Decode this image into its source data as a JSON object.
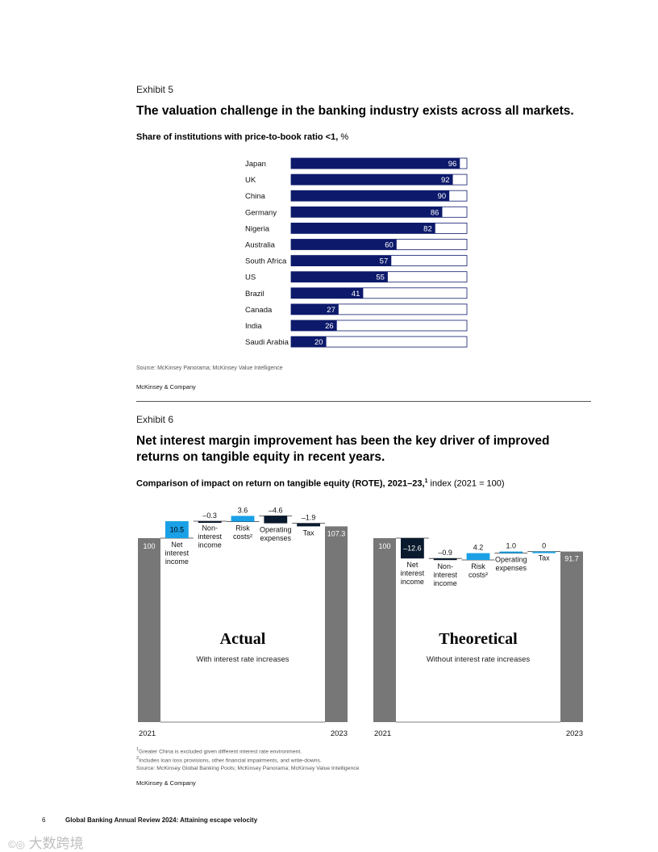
{
  "exhibit5": {
    "label": "Exhibit 5",
    "title": "The valuation challenge in the banking industry exists across all markets.",
    "subtitle_bold": "Share of institutions with price-to-book ratio <1,",
    "subtitle_unit": " %",
    "source": "Source: McKinsey Panorama; McKinsey Value Intelligence",
    "brand": "McKinsey & Company"
  },
  "exhibit6": {
    "label": "Exhibit 6",
    "title_line1": "Net interest margin improvement has been the key driver of improved",
    "title_line2": "returns on tangible equity in recent years.",
    "subtitle_bold": "Comparison of impact on return on tangible equity (ROTE), 2021–23,",
    "subtitle_sup": "1",
    "subtitle_rest": " index (2021 = 100)",
    "footnote1": "Greater China is excluded given different interest rate environment.",
    "footnote2": "Includes loan loss provisions, other financial impairments, and write-downs.",
    "source": "Source: McKinsey Global Banking Pools; McKinsey Panorama; McKinsey Value Intelligence",
    "brand": "McKinsey & Company"
  },
  "footer": {
    "page_number": "6",
    "publication": "Global Banking Annual Review 2024: Attaining escape velocity"
  },
  "watermark": "大数跨境",
  "colors": {
    "navy": "#0d1a6b",
    "dark": "#091a2e",
    "cyan": "#1aa0e6",
    "gray": "#777777"
  },
  "chart_data": [
    {
      "type": "bar",
      "orientation": "horizontal",
      "categories": [
        "Japan",
        "UK",
        "China",
        "Germany",
        "Nigeria",
        "Australia",
        "South Africa",
        "US",
        "Brazil",
        "Canada",
        "India",
        "Saudi Arabia"
      ],
      "values": [
        96,
        92,
        90,
        86,
        82,
        60,
        57,
        55,
        41,
        27,
        26,
        20
      ],
      "xlim": [
        0,
        100
      ],
      "title": "Share of institutions with price-to-book ratio <1, %"
    },
    {
      "type": "waterfall",
      "title": "Actual",
      "subtitle": "With interest rate increases",
      "start": {
        "label": "2021",
        "value": 100,
        "display": "100"
      },
      "end": {
        "label": "2023",
        "value": 107.3,
        "display": "107.3"
      },
      "steps": [
        {
          "label": [
            "Net",
            "interest",
            "income"
          ],
          "value": 10.5,
          "display": "10.5"
        },
        {
          "label": [
            "Non-",
            "interest",
            "income"
          ],
          "value": -0.3,
          "display": "–0.3"
        },
        {
          "label": [
            "Risk",
            "costs²"
          ],
          "value": 3.6,
          "display": "3.6"
        },
        {
          "label": [
            "Operating",
            "expenses"
          ],
          "value": -4.6,
          "display": "–4.6"
        },
        {
          "label": [
            "Tax"
          ],
          "value": -1.9,
          "display": "–1.9"
        }
      ]
    },
    {
      "type": "waterfall",
      "title": "Theoretical",
      "subtitle": "Without interest rate increases",
      "start": {
        "label": "2021",
        "value": 100,
        "display": "100"
      },
      "end": {
        "label": "2023",
        "value": 91.7,
        "display": "91.7"
      },
      "steps": [
        {
          "label": [
            "Net",
            "interest",
            "income"
          ],
          "value": -12.6,
          "display": "–12.6"
        },
        {
          "label": [
            "Non-",
            "interest",
            "income"
          ],
          "value": -0.9,
          "display": "–0.9"
        },
        {
          "label": [
            "Risk",
            "costs²"
          ],
          "value": 4.2,
          "display": "4.2"
        },
        {
          "label": [
            "Operating",
            "expenses"
          ],
          "value": 1.0,
          "display": "1.0"
        },
        {
          "label": [
            "Tax"
          ],
          "value": 0,
          "display": "0"
        }
      ]
    }
  ]
}
